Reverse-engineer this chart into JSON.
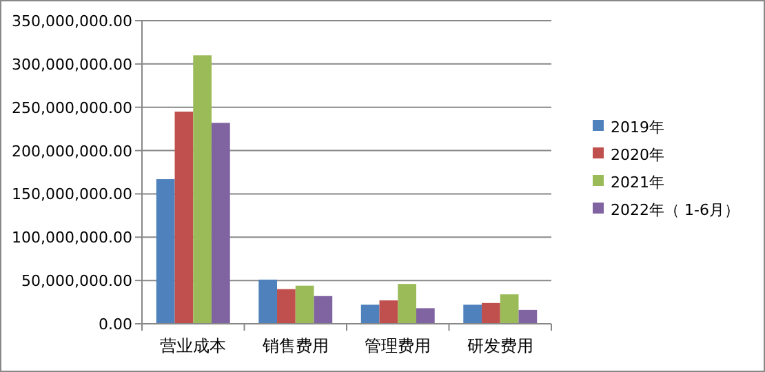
{
  "chart_data": {
    "type": "bar",
    "categories": [
      "营业成本",
      "销售费用",
      "管理费用",
      "研发费用"
    ],
    "series": [
      {
        "name": "2019年",
        "color": "#4f81bd",
        "values": [
          167000000,
          51000000,
          22000000,
          22000000
        ]
      },
      {
        "name": "2020年",
        "color": "#c0504d",
        "values": [
          245000000,
          40000000,
          27000000,
          24000000
        ]
      },
      {
        "name": "2021年",
        "color": "#9bbb59",
        "values": [
          310000000,
          44000000,
          46000000,
          34000000
        ]
      },
      {
        "name": "2022年（ 1-6月）",
        "color": "#8064a2",
        "values": [
          232000000,
          32000000,
          18000000,
          16000000
        ]
      }
    ],
    "ylim": [
      0,
      350000000
    ],
    "yticks": [
      {
        "value": 0,
        "label": "0.00"
      },
      {
        "value": 50000000,
        "label": "50,000,000.00"
      },
      {
        "value": 100000000,
        "label": "100,000,000.00"
      },
      {
        "value": 150000000,
        "label": "150,000,000.00"
      },
      {
        "value": 200000000,
        "label": "200,000,000.00"
      },
      {
        "value": 250000000,
        "label": "250,000,000.00"
      },
      {
        "value": 300000000,
        "label": "300,000,000.00"
      },
      {
        "value": 350000000,
        "label": "350,000,000.00"
      }
    ],
    "grid": "y",
    "legend": "right"
  }
}
